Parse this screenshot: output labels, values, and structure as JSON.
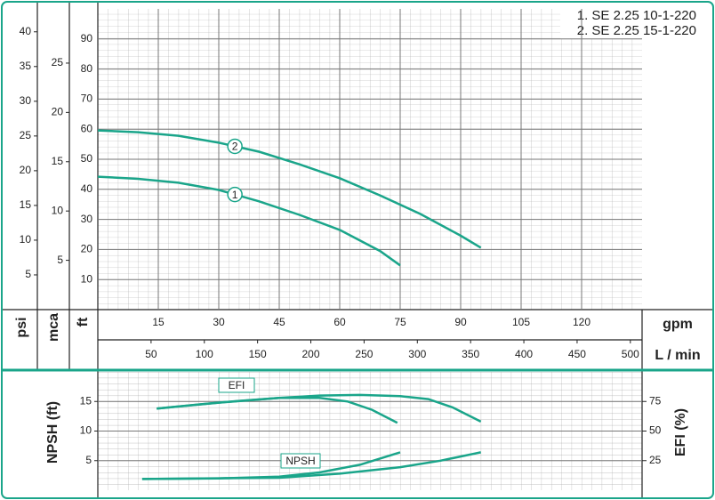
{
  "chart_data": [
    {
      "type": "line",
      "legend": [
        "1. SE 2.25 10-1-220",
        "2. SE 2.25 15-1-220"
      ],
      "xlabel": "gpm",
      "xlim": [
        0,
        135
      ],
      "xticks": [
        15,
        30,
        45,
        60,
        75,
        90,
        105,
        120
      ],
      "x2label": "L / min",
      "x2lim": [
        0,
        511
      ],
      "x2ticks": [
        50,
        100,
        150,
        200,
        250,
        300,
        350,
        400,
        450,
        500
      ],
      "ylabel": "ft",
      "ylim": [
        0,
        100
      ],
      "yticks": [
        10,
        20,
        30,
        40,
        50,
        60,
        70,
        80,
        90
      ],
      "extra_y_axes": [
        {
          "label": "psi",
          "lim": [
            0,
            43.3
          ],
          "ticks": [
            5,
            10,
            15,
            20,
            25,
            30,
            35,
            40
          ]
        },
        {
          "label": "mca",
          "lim": [
            0,
            30.5
          ],
          "ticks": [
            5,
            10,
            15,
            20,
            25
          ]
        }
      ],
      "grid": true,
      "series": [
        {
          "name": "1",
          "color": "#1aa58a",
          "x": [
            0,
            10,
            20,
            30,
            40,
            50,
            60,
            70,
            75
          ],
          "values": [
            44.2,
            43.5,
            42.2,
            39.8,
            36,
            31.5,
            26.5,
            19.5,
            14.7
          ]
        },
        {
          "name": "2",
          "color": "#1aa58a",
          "x": [
            0,
            10,
            20,
            30,
            40,
            50,
            60,
            70,
            80,
            90,
            95
          ],
          "values": [
            59.6,
            59,
            57.8,
            55.5,
            52.5,
            48.3,
            43.7,
            38,
            31.8,
            24.6,
            20.6
          ]
        }
      ]
    },
    {
      "type": "line",
      "xlim": [
        0,
        135
      ],
      "ylabel": "NPSH (ft)",
      "ylim": [
        0,
        20
      ],
      "yticks": [
        5,
        10,
        15
      ],
      "y2label": "EFI (%)",
      "y2lim": [
        0,
        100
      ],
      "y2ticks": [
        25,
        50,
        75
      ],
      "grid": true,
      "annotations": [
        "EFI",
        "NPSH"
      ],
      "series": [
        {
          "color": "#1aa58a",
          "axis": "y2",
          "x": [
            14.6,
            25,
            35,
            45,
            55,
            62,
            68,
            74.3
          ],
          "values": [
            69,
            72.5,
            75.5,
            78,
            78,
            75,
            68,
            57
          ]
        },
        {
          "color": "#1aa58a",
          "axis": "y2",
          "x": [
            14.6,
            30,
            45,
            55,
            65,
            75,
            82,
            88,
            95
          ],
          "values": [
            69,
            74,
            78,
            80,
            80.5,
            79.5,
            77,
            70,
            58
          ]
        },
        {
          "color": "#1aa58a",
          "x": [
            11,
            30,
            45,
            55,
            65,
            75
          ],
          "values": [
            1.9,
            2,
            2.3,
            3,
            4.3,
            6.4
          ]
        },
        {
          "color": "#1aa58a",
          "x": [
            11,
            45,
            60,
            75,
            85,
            95
          ],
          "values": [
            1.9,
            2.1,
            2.8,
            3.9,
            5,
            6.4
          ]
        }
      ]
    }
  ]
}
